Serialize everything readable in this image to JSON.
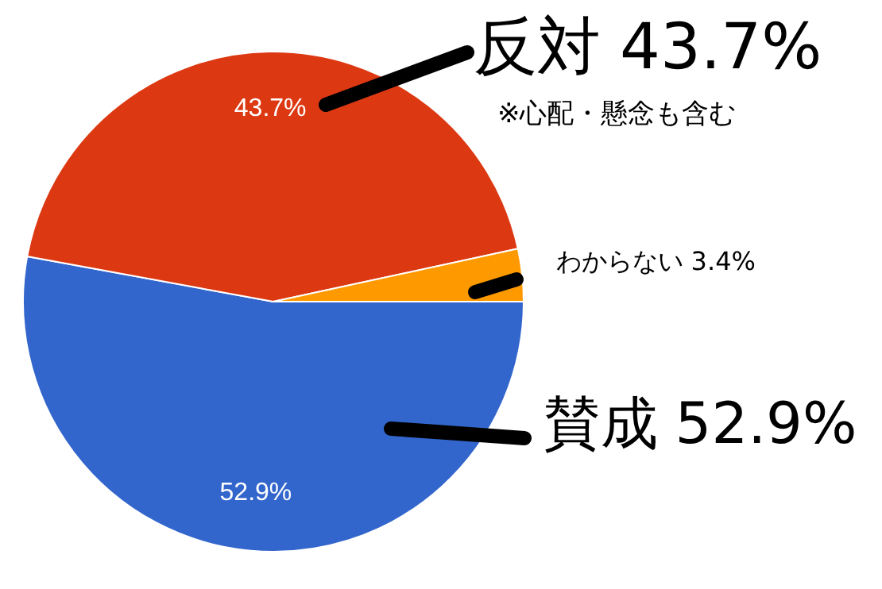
{
  "chart_data": {
    "type": "pie",
    "categories": [
      "賛成",
      "反対",
      "わからない"
    ],
    "values": [
      52.9,
      43.7,
      3.4
    ],
    "colors": [
      "#3366cc",
      "#dc3912",
      "#ff9900"
    ],
    "value_labels": [
      "52.9%",
      "43.7%",
      "3.4%"
    ],
    "annotations": [
      "※心配・懸念も含む"
    ],
    "legend": false
  }
}
